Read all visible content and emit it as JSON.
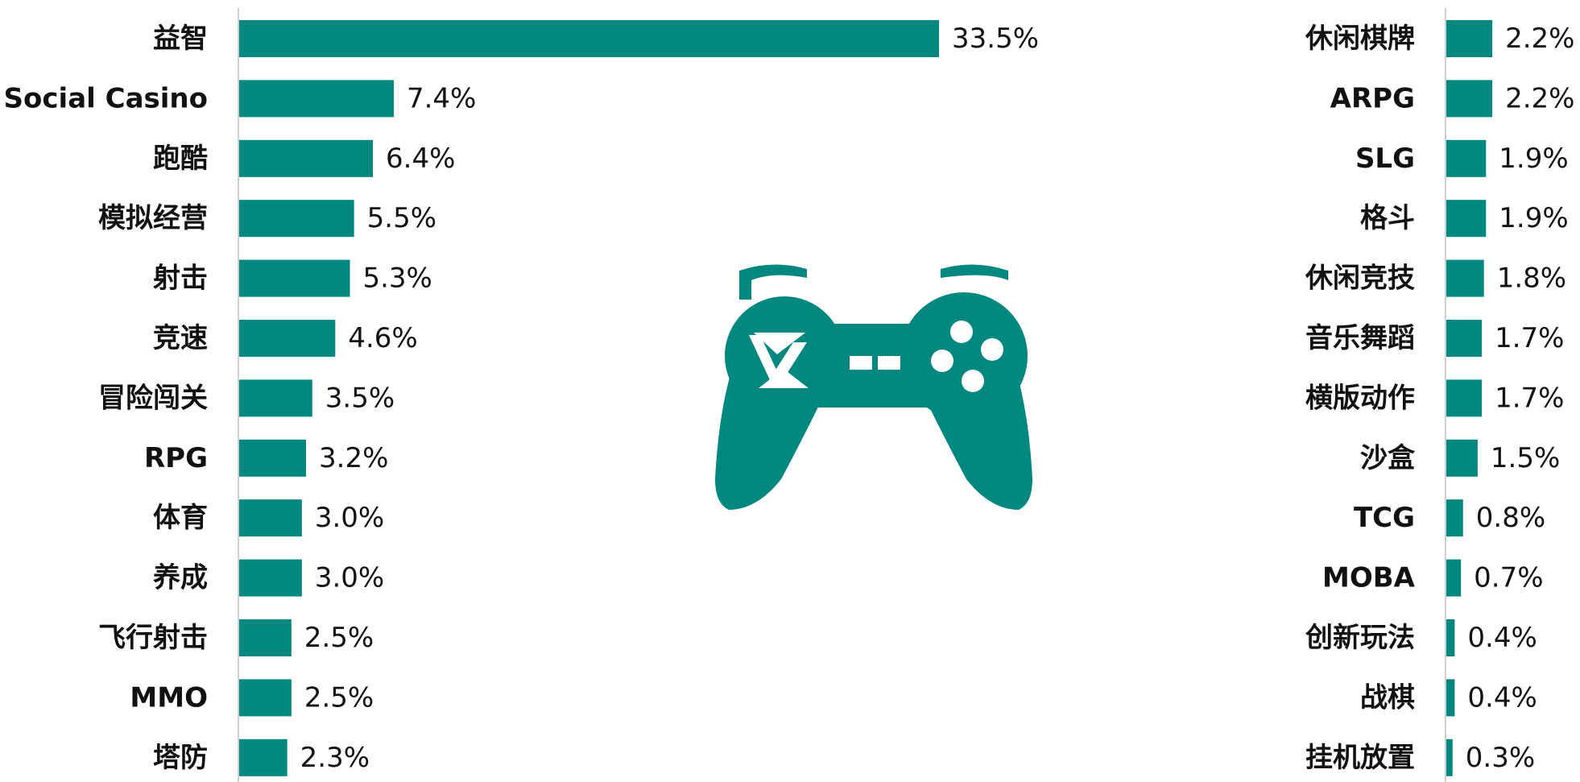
{
  "colors": {
    "bar": "#00877F",
    "axis": "#cfcfcf",
    "text": "#111111",
    "icon": "#00877F"
  },
  "icon": "gamepad-icon",
  "chart_data": {
    "type": "bar",
    "orientation": "horizontal",
    "unit": "%",
    "grid": false,
    "legend": "none",
    "panels": [
      {
        "categories": [
          "益智",
          "Social Casino",
          "跑酷",
          "模拟经营",
          "射击",
          "竞速",
          "冒险闯关",
          "RPG",
          "体育",
          "养成",
          "飞行射击",
          "MMO",
          "塔防"
        ],
        "values": [
          33.5,
          7.4,
          6.4,
          5.5,
          5.3,
          4.6,
          3.5,
          3.2,
          3.0,
          3.0,
          2.5,
          2.5,
          2.3
        ],
        "labels": [
          "33.5%",
          "7.4%",
          "6.4%",
          "5.5%",
          "5.3%",
          "4.6%",
          "3.5%",
          "3.2%",
          "3.0%",
          "3.0%",
          "2.5%",
          "2.5%",
          "2.3%"
        ]
      },
      {
        "categories": [
          "休闲棋牌",
          "ARPG",
          "SLG",
          "格斗",
          "休闲竞技",
          "音乐舞蹈",
          "横版动作",
          "沙盒",
          "TCG",
          "MOBA",
          "创新玩法",
          "战棋",
          "挂机放置"
        ],
        "values": [
          2.2,
          2.2,
          1.9,
          1.9,
          1.8,
          1.7,
          1.7,
          1.5,
          0.8,
          0.7,
          0.4,
          0.4,
          0.3
        ],
        "labels": [
          "2.2%",
          "2.2%",
          "1.9%",
          "1.9%",
          "1.8%",
          "1.7%",
          "1.7%",
          "1.5%",
          "0.8%",
          "0.7%",
          "0.4%",
          "0.4%",
          "0.3%"
        ]
      }
    ]
  }
}
